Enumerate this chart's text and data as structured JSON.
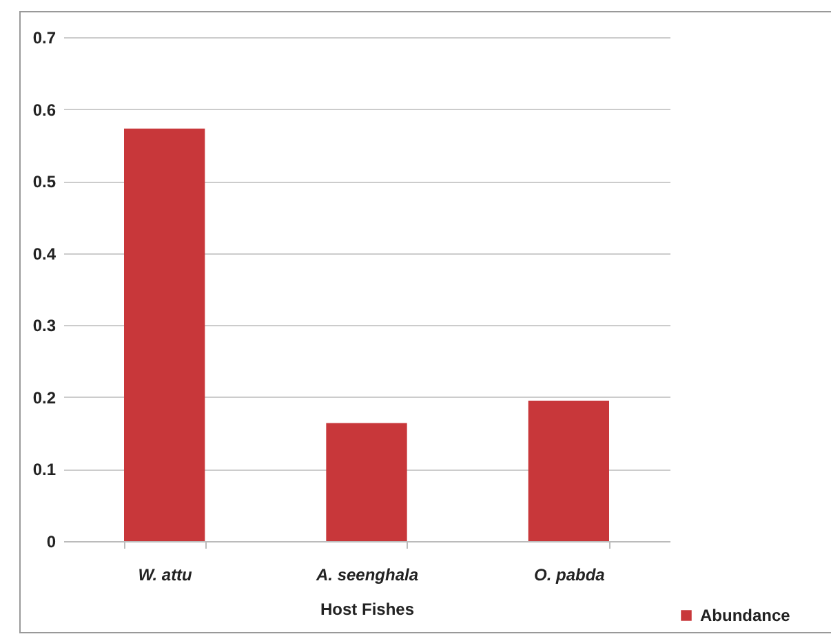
{
  "chart_data": {
    "type": "bar",
    "xlabel": "Host Fishes",
    "categories": [
      "W. attu",
      "A. seenghala",
      "O. pabda"
    ],
    "series": [
      {
        "name": "Abundance",
        "color": "#c8373a",
        "values": [
          0.573,
          0.164,
          0.195
        ]
      }
    ],
    "ylim": [
      0,
      0.7
    ],
    "yticks": [
      0,
      0.1,
      0.2,
      0.3,
      0.4,
      0.5,
      0.6,
      0.7
    ],
    "grid": "y",
    "legend": "bottom right"
  }
}
